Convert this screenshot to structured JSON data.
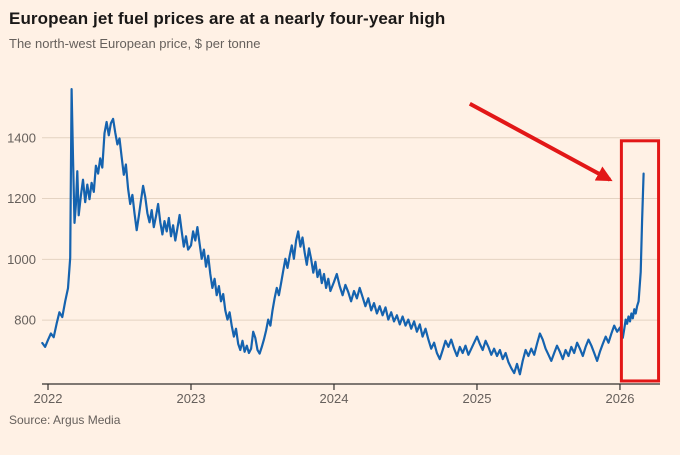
{
  "page": {
    "title": "European jet fuel prices are at a nearly four-year high",
    "subtitle": "The north-west European price, $ per tonne",
    "source": "Source: Argus Media"
  },
  "colors": {
    "background": "#FFF1E5",
    "title_text": "#1a1817",
    "muted_text": "#66605C",
    "line": "#1563af",
    "grid": "#e4d3c2",
    "axis": "#33302e",
    "annotation": "#e21717"
  },
  "chart_data": {
    "type": "line",
    "title": "European jet fuel prices are at a nearly four-year high",
    "subtitle": "The north-west European price, $ per tonne",
    "ylabel": "$ per tonne",
    "xlabel": "",
    "x_ticks": [
      2022,
      2023,
      2024,
      2025,
      2026
    ],
    "y_ticks": [
      800,
      1000,
      1200,
      1400
    ],
    "x_range": [
      2021.958,
      2026.28
    ],
    "y_range": [
      590,
      1590
    ],
    "grid": "horizontal-only",
    "legend": "none",
    "series": [
      {
        "name": "North-west European jet fuel price, $ per tonne",
        "points": [
          [
            2021.96,
            725
          ],
          [
            2021.98,
            712
          ],
          [
            2022.0,
            735
          ],
          [
            2022.02,
            756
          ],
          [
            2022.04,
            744
          ],
          [
            2022.06,
            788
          ],
          [
            2022.08,
            826
          ],
          [
            2022.1,
            810
          ],
          [
            2022.12,
            862
          ],
          [
            2022.14,
            905
          ],
          [
            2022.155,
            1005
          ],
          [
            2022.165,
            1560
          ],
          [
            2022.175,
            1335
          ],
          [
            2022.185,
            1120
          ],
          [
            2022.195,
            1180
          ],
          [
            2022.205,
            1290
          ],
          [
            2022.215,
            1145
          ],
          [
            2022.23,
            1210
          ],
          [
            2022.245,
            1262
          ],
          [
            2022.26,
            1188
          ],
          [
            2022.275,
            1246
          ],
          [
            2022.29,
            1198
          ],
          [
            2022.305,
            1252
          ],
          [
            2022.32,
            1222
          ],
          [
            2022.335,
            1308
          ],
          [
            2022.35,
            1282
          ],
          [
            2022.365,
            1332
          ],
          [
            2022.38,
            1302
          ],
          [
            2022.395,
            1415
          ],
          [
            2022.41,
            1452
          ],
          [
            2022.425,
            1408
          ],
          [
            2022.44,
            1448
          ],
          [
            2022.455,
            1462
          ],
          [
            2022.47,
            1418
          ],
          [
            2022.485,
            1378
          ],
          [
            2022.5,
            1398
          ],
          [
            2022.515,
            1338
          ],
          [
            2022.53,
            1278
          ],
          [
            2022.545,
            1312
          ],
          [
            2022.56,
            1232
          ],
          [
            2022.575,
            1182
          ],
          [
            2022.59,
            1212
          ],
          [
            2022.605,
            1152
          ],
          [
            2022.62,
            1096
          ],
          [
            2022.635,
            1142
          ],
          [
            2022.65,
            1192
          ],
          [
            2022.665,
            1242
          ],
          [
            2022.68,
            1206
          ],
          [
            2022.695,
            1152
          ],
          [
            2022.71,
            1122
          ],
          [
            2022.725,
            1162
          ],
          [
            2022.74,
            1106
          ],
          [
            2022.755,
            1142
          ],
          [
            2022.77,
            1182
          ],
          [
            2022.785,
            1122
          ],
          [
            2022.8,
            1082
          ],
          [
            2022.815,
            1126
          ],
          [
            2022.83,
            1092
          ],
          [
            2022.845,
            1136
          ],
          [
            2022.86,
            1076
          ],
          [
            2022.875,
            1112
          ],
          [
            2022.89,
            1062
          ],
          [
            2022.905,
            1102
          ],
          [
            2022.92,
            1146
          ],
          [
            2022.935,
            1092
          ],
          [
            2022.95,
            1042
          ],
          [
            2022.965,
            1076
          ],
          [
            2022.98,
            1032
          ],
          [
            2023.0,
            1046
          ],
          [
            2023.015,
            1092
          ],
          [
            2023.03,
            1062
          ],
          [
            2023.045,
            1106
          ],
          [
            2023.06,
            1052
          ],
          [
            2023.075,
            1002
          ],
          [
            2023.09,
            1032
          ],
          [
            2023.105,
            976
          ],
          [
            2023.12,
            1012
          ],
          [
            2023.135,
            952
          ],
          [
            2023.15,
            906
          ],
          [
            2023.165,
            936
          ],
          [
            2023.18,
            882
          ],
          [
            2023.195,
            912
          ],
          [
            2023.21,
            862
          ],
          [
            2023.225,
            886
          ],
          [
            2023.24,
            832
          ],
          [
            2023.255,
            802
          ],
          [
            2023.27,
            826
          ],
          [
            2023.285,
            782
          ],
          [
            2023.3,
            746
          ],
          [
            2023.315,
            772
          ],
          [
            2023.33,
            722
          ],
          [
            2023.345,
            702
          ],
          [
            2023.36,
            732
          ],
          [
            2023.375,
            696
          ],
          [
            2023.39,
            716
          ],
          [
            2023.405,
            692
          ],
          [
            2023.42,
            706
          ],
          [
            2023.435,
            762
          ],
          [
            2023.45,
            742
          ],
          [
            2023.465,
            702
          ],
          [
            2023.48,
            690
          ],
          [
            2023.495,
            712
          ],
          [
            2023.51,
            736
          ],
          [
            2023.525,
            766
          ],
          [
            2023.54,
            802
          ],
          [
            2023.555,
            782
          ],
          [
            2023.57,
            832
          ],
          [
            2023.585,
            872
          ],
          [
            2023.6,
            906
          ],
          [
            2023.615,
            882
          ],
          [
            2023.63,
            922
          ],
          [
            2023.645,
            962
          ],
          [
            2023.66,
            1002
          ],
          [
            2023.675,
            972
          ],
          [
            2023.69,
            1012
          ],
          [
            2023.705,
            1046
          ],
          [
            2023.72,
            1002
          ],
          [
            2023.735,
            1062
          ],
          [
            2023.75,
            1092
          ],
          [
            2023.765,
            1042
          ],
          [
            2023.78,
            1072
          ],
          [
            2023.795,
            1022
          ],
          [
            2023.81,
            982
          ],
          [
            2023.825,
            1036
          ],
          [
            2023.84,
            1002
          ],
          [
            2023.855,
            956
          ],
          [
            2023.87,
            992
          ],
          [
            2023.885,
            942
          ],
          [
            2023.9,
            966
          ],
          [
            2023.915,
            922
          ],
          [
            2023.93,
            952
          ],
          [
            2023.945,
            906
          ],
          [
            2023.96,
            936
          ],
          [
            2023.975,
            896
          ],
          [
            2024.0,
            926
          ],
          [
            2024.02,
            952
          ],
          [
            2024.04,
            912
          ],
          [
            2024.06,
            882
          ],
          [
            2024.08,
            916
          ],
          [
            2024.1,
            892
          ],
          [
            2024.12,
            862
          ],
          [
            2024.14,
            896
          ],
          [
            2024.16,
            872
          ],
          [
            2024.18,
            906
          ],
          [
            2024.2,
            876
          ],
          [
            2024.22,
            846
          ],
          [
            2024.24,
            872
          ],
          [
            2024.26,
            832
          ],
          [
            2024.28,
            856
          ],
          [
            2024.3,
            822
          ],
          [
            2024.32,
            846
          ],
          [
            2024.34,
            816
          ],
          [
            2024.36,
            842
          ],
          [
            2024.38,
            802
          ],
          [
            2024.4,
            826
          ],
          [
            2024.42,
            796
          ],
          [
            2024.44,
            816
          ],
          [
            2024.46,
            786
          ],
          [
            2024.48,
            812
          ],
          [
            2024.5,
            782
          ],
          [
            2024.52,
            802
          ],
          [
            2024.54,
            772
          ],
          [
            2024.56,
            796
          ],
          [
            2024.58,
            762
          ],
          [
            2024.6,
            786
          ],
          [
            2024.62,
            746
          ],
          [
            2024.64,
            772
          ],
          [
            2024.66,
            736
          ],
          [
            2024.68,
            706
          ],
          [
            2024.7,
            726
          ],
          [
            2024.72,
            692
          ],
          [
            2024.74,
            672
          ],
          [
            2024.76,
            702
          ],
          [
            2024.78,
            732
          ],
          [
            2024.8,
            712
          ],
          [
            2024.82,
            736
          ],
          [
            2024.84,
            706
          ],
          [
            2024.86,
            682
          ],
          [
            2024.88,
            712
          ],
          [
            2024.9,
            692
          ],
          [
            2024.92,
            716
          ],
          [
            2024.94,
            686
          ],
          [
            2024.96,
            706
          ],
          [
            2024.98,
            726
          ],
          [
            2025.0,
            746
          ],
          [
            2025.02,
            722
          ],
          [
            2025.04,
            702
          ],
          [
            2025.06,
            732
          ],
          [
            2025.08,
            712
          ],
          [
            2025.1,
            686
          ],
          [
            2025.12,
            706
          ],
          [
            2025.14,
            682
          ],
          [
            2025.16,
            702
          ],
          [
            2025.18,
            672
          ],
          [
            2025.2,
            692
          ],
          [
            2025.22,
            662
          ],
          [
            2025.24,
            642
          ],
          [
            2025.26,
            626
          ],
          [
            2025.28,
            656
          ],
          [
            2025.3,
            622
          ],
          [
            2025.32,
            666
          ],
          [
            2025.34,
            702
          ],
          [
            2025.36,
            682
          ],
          [
            2025.38,
            706
          ],
          [
            2025.4,
            686
          ],
          [
            2025.42,
            722
          ],
          [
            2025.44,
            756
          ],
          [
            2025.46,
            736
          ],
          [
            2025.48,
            706
          ],
          [
            2025.5,
            686
          ],
          [
            2025.52,
            666
          ],
          [
            2025.54,
            692
          ],
          [
            2025.56,
            716
          ],
          [
            2025.58,
            696
          ],
          [
            2025.6,
            672
          ],
          [
            2025.62,
            702
          ],
          [
            2025.64,
            682
          ],
          [
            2025.66,
            712
          ],
          [
            2025.68,
            692
          ],
          [
            2025.7,
            726
          ],
          [
            2025.72,
            706
          ],
          [
            2025.74,
            682
          ],
          [
            2025.76,
            712
          ],
          [
            2025.78,
            736
          ],
          [
            2025.8,
            716
          ],
          [
            2025.82,
            692
          ],
          [
            2025.84,
            666
          ],
          [
            2025.86,
            696
          ],
          [
            2025.88,
            722
          ],
          [
            2025.9,
            746
          ],
          [
            2025.92,
            726
          ],
          [
            2025.94,
            756
          ],
          [
            2025.96,
            782
          ],
          [
            2025.98,
            762
          ],
          [
            2026.0,
            776
          ],
          [
            2026.01,
            752
          ],
          [
            2026.02,
            742
          ],
          [
            2026.03,
            772
          ],
          [
            2026.04,
            802
          ],
          [
            2026.05,
            788
          ],
          [
            2026.06,
            812
          ],
          [
            2026.07,
            796
          ],
          [
            2026.08,
            822
          ],
          [
            2026.09,
            806
          ],
          [
            2026.1,
            836
          ],
          [
            2026.11,
            822
          ],
          [
            2026.12,
            846
          ],
          [
            2026.13,
            862
          ],
          [
            2026.145,
            958
          ],
          [
            2026.155,
            1128
          ],
          [
            2026.165,
            1282
          ]
        ]
      }
    ],
    "annotations": {
      "highlight_box": {
        "x_from": 2026.01,
        "x_to": 2026.27,
        "y_from": 600,
        "y_to": 1390,
        "color": "#e21717"
      },
      "arrow": {
        "from_x": 2024.95,
        "from_y": 1512,
        "to_x": 2025.93,
        "to_y": 1262,
        "color": "#e21717"
      }
    }
  }
}
